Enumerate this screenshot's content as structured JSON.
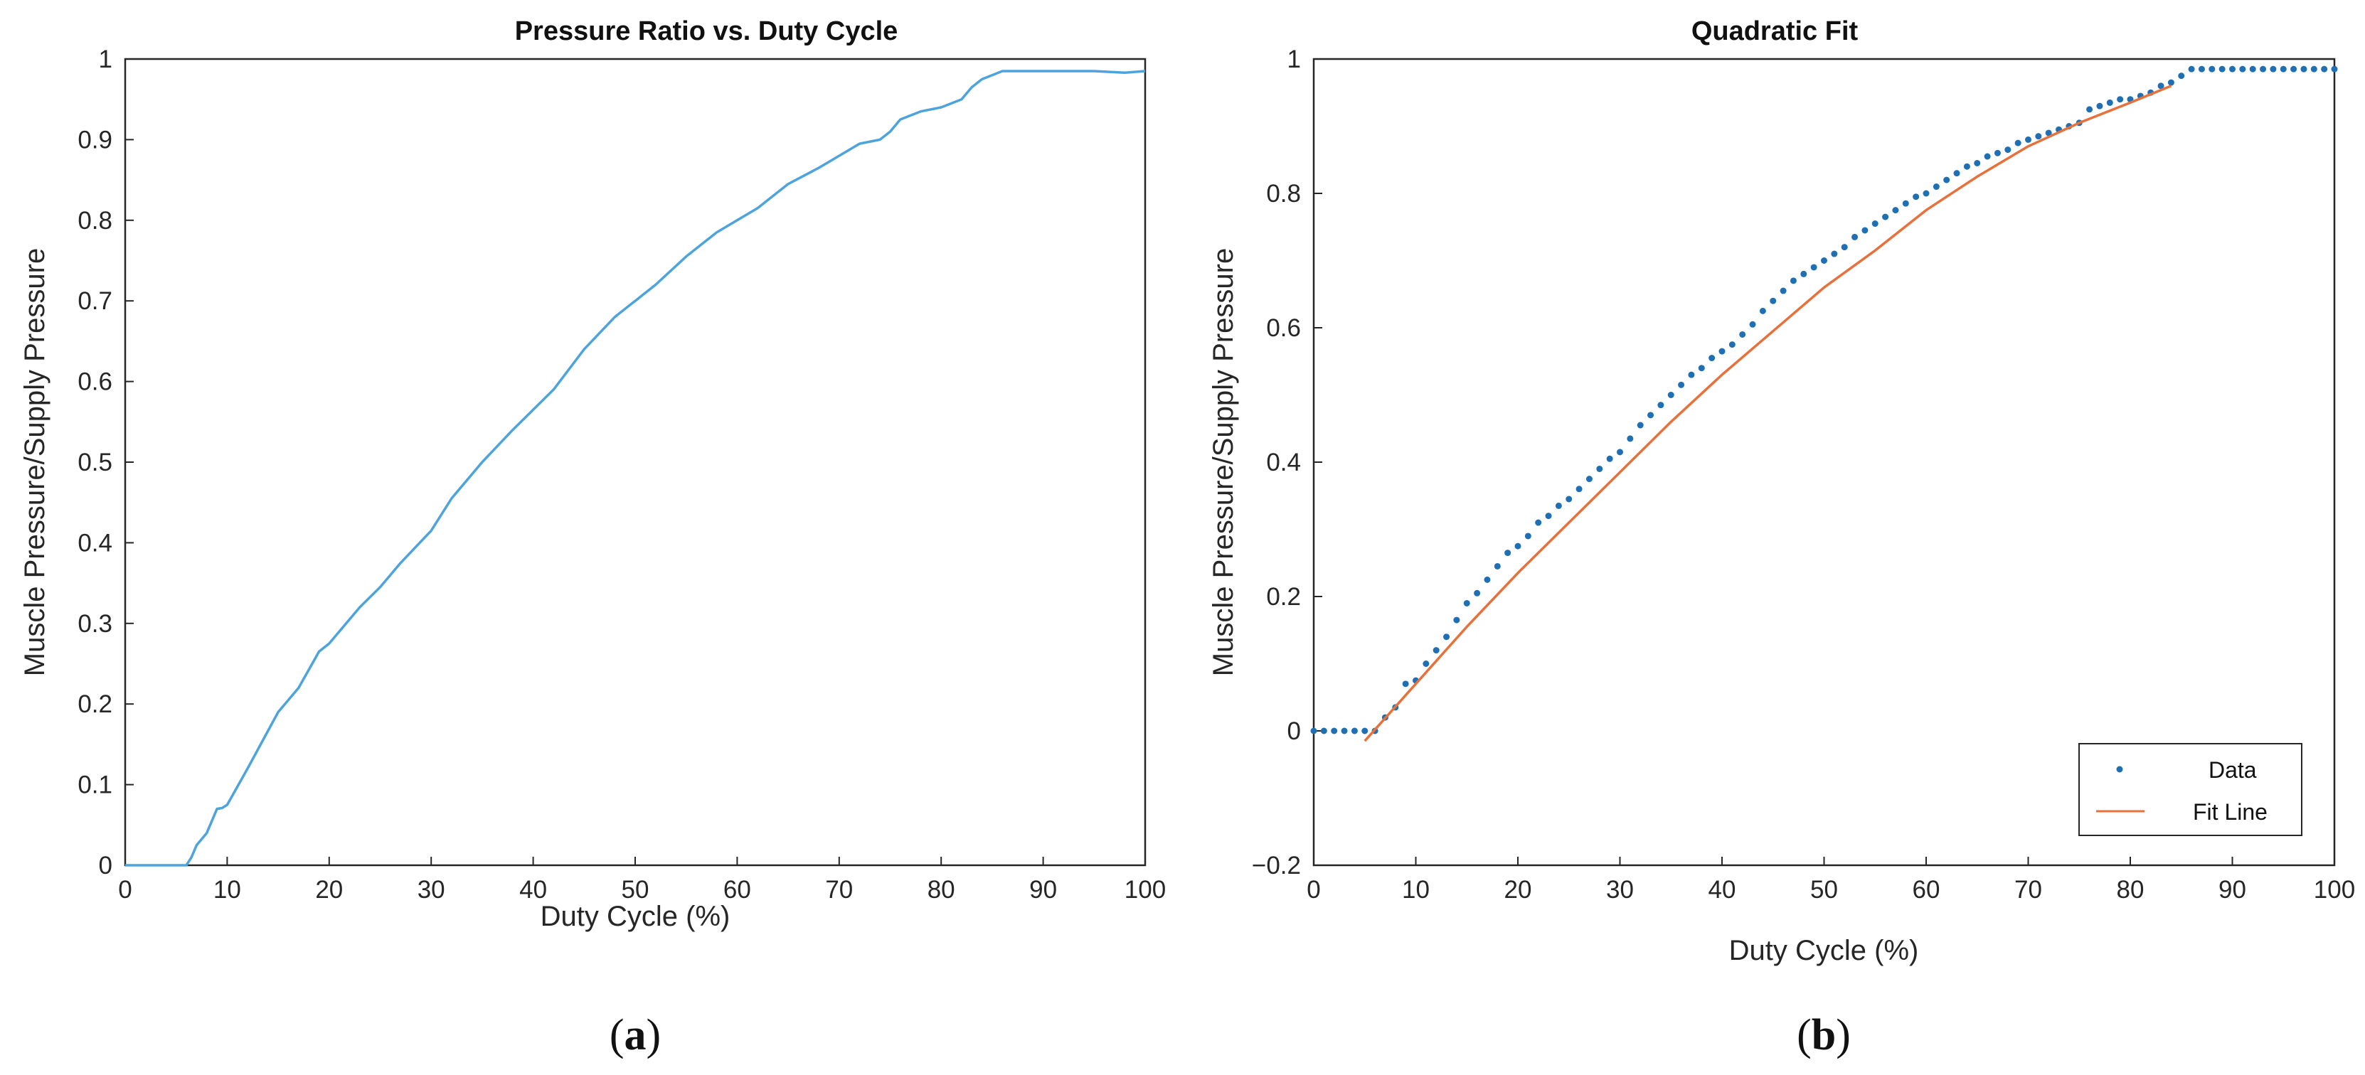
{
  "chart_data": [
    {
      "type": "line",
      "title": "Pressure Ratio vs. Duty Cycle",
      "xlabel": "Duty Cycle (%)",
      "ylabel": "Muscle Pressure/Supply Pressure",
      "xlim": [
        0,
        100
      ],
      "ylim": [
        0,
        1
      ],
      "xticks": [
        0,
        10,
        20,
        30,
        40,
        50,
        60,
        70,
        80,
        90,
        100
      ],
      "yticks": [
        0,
        0.1,
        0.2,
        0.3,
        0.4,
        0.5,
        0.6,
        0.7,
        0.8,
        0.9,
        1
      ],
      "ytick_labels": [
        "0",
        "0.1",
        "0.2",
        "0.3",
        "0.4",
        "0.5",
        "0.6",
        "0.7",
        "0.8",
        "0.9",
        "1"
      ],
      "color": "#4DA3DC",
      "series": [
        {
          "name": "Pressure ratio",
          "x": [
            0,
            6,
            6.5,
            7,
            8,
            9,
            9.5,
            10,
            12,
            15,
            17,
            19,
            20,
            21,
            23,
            25,
            27,
            30,
            32,
            35,
            38,
            40,
            42,
            45,
            48,
            50,
            52,
            55,
            58,
            60,
            62,
            65,
            68,
            70,
            72,
            74,
            75,
            76,
            78,
            80,
            82,
            83,
            84,
            85,
            86,
            88,
            90,
            95,
            98,
            100
          ],
          "y": [
            0,
            0,
            0.01,
            0.025,
            0.04,
            0.07,
            0.071,
            0.075,
            0.12,
            0.19,
            0.22,
            0.265,
            0.275,
            0.29,
            0.32,
            0.345,
            0.375,
            0.415,
            0.455,
            0.5,
            0.54,
            0.565,
            0.59,
            0.64,
            0.68,
            0.7,
            0.72,
            0.755,
            0.785,
            0.8,
            0.815,
            0.845,
            0.865,
            0.88,
            0.895,
            0.9,
            0.91,
            0.925,
            0.935,
            0.94,
            0.95,
            0.965,
            0.975,
            0.98,
            0.985,
            0.985,
            0.985,
            0.985,
            0.983,
            0.985
          ]
        }
      ],
      "caption": "a"
    },
    {
      "type": "scatter",
      "title": "Quadratic Fit",
      "xlabel": "Duty Cycle (%)",
      "ylabel": "Muscle Pressure/Supply Pressure",
      "xlim": [
        0,
        100
      ],
      "ylim": [
        -0.2,
        1
      ],
      "xticks": [
        0,
        10,
        20,
        30,
        40,
        50,
        60,
        70,
        80,
        90,
        100
      ],
      "yticks": [
        -0.2,
        0,
        0.2,
        0.4,
        0.6,
        0.8,
        1
      ],
      "ytick_labels": [
        "−0.2",
        "0",
        "0.2",
        "0.4",
        "0.6",
        "0.8",
        "1"
      ],
      "series": [
        {
          "name": "Data",
          "style": "dots",
          "color": "#1F6FB4",
          "x": [
            0,
            1,
            2,
            3,
            4,
            5,
            6,
            7,
            8,
            9,
            10,
            11,
            12,
            13,
            14,
            15,
            16,
            17,
            18,
            19,
            20,
            21,
            22,
            23,
            24,
            25,
            26,
            27,
            28,
            29,
            30,
            31,
            32,
            33,
            34,
            35,
            36,
            37,
            38,
            39,
            40,
            41,
            42,
            43,
            44,
            45,
            46,
            47,
            48,
            49,
            50,
            51,
            52,
            53,
            54,
            55,
            56,
            57,
            58,
            59,
            60,
            61,
            62,
            63,
            64,
            65,
            66,
            67,
            68,
            69,
            70,
            71,
            72,
            73,
            74,
            75,
            76,
            77,
            78,
            79,
            80,
            81,
            82,
            83,
            84,
            85,
            86,
            87,
            88,
            89,
            90,
            91,
            92,
            93,
            94,
            95,
            96,
            97,
            98,
            99,
            100
          ],
          "y": [
            0,
            0,
            0,
            0,
            0,
            0,
            0,
            0.02,
            0.035,
            0.07,
            0.075,
            0.1,
            0.12,
            0.14,
            0.165,
            0.19,
            0.205,
            0.225,
            0.245,
            0.265,
            0.275,
            0.29,
            0.31,
            0.32,
            0.335,
            0.345,
            0.36,
            0.375,
            0.39,
            0.405,
            0.415,
            0.435,
            0.455,
            0.47,
            0.485,
            0.5,
            0.515,
            0.53,
            0.54,
            0.555,
            0.565,
            0.575,
            0.59,
            0.605,
            0.625,
            0.64,
            0.655,
            0.67,
            0.68,
            0.69,
            0.7,
            0.71,
            0.72,
            0.735,
            0.745,
            0.755,
            0.765,
            0.775,
            0.785,
            0.795,
            0.8,
            0.81,
            0.82,
            0.83,
            0.84,
            0.845,
            0.855,
            0.86,
            0.865,
            0.875,
            0.88,
            0.885,
            0.89,
            0.895,
            0.9,
            0.905,
            0.925,
            0.93,
            0.935,
            0.94,
            0.94,
            0.945,
            0.95,
            0.96,
            0.965,
            0.975,
            0.985,
            0.985,
            0.985,
            0.985,
            0.985,
            0.985,
            0.985,
            0.985,
            0.985,
            0.985,
            0.985,
            0.985,
            0.985,
            0.985,
            0.985
          ]
        },
        {
          "name": "Fit Line",
          "style": "line",
          "color": "#E8703A",
          "x": [
            5,
            10,
            15,
            20,
            25,
            30,
            35,
            40,
            45,
            50,
            55,
            60,
            65,
            70,
            75,
            80,
            84
          ],
          "y": [
            -0.015,
            0.07,
            0.155,
            0.235,
            0.31,
            0.385,
            0.46,
            0.53,
            0.595,
            0.66,
            0.715,
            0.775,
            0.825,
            0.87,
            0.905,
            0.935,
            0.96
          ]
        }
      ],
      "legend": {
        "position": "bottom-right",
        "entries": [
          "Data",
          "Fit Line"
        ]
      },
      "caption": "b"
    }
  ]
}
